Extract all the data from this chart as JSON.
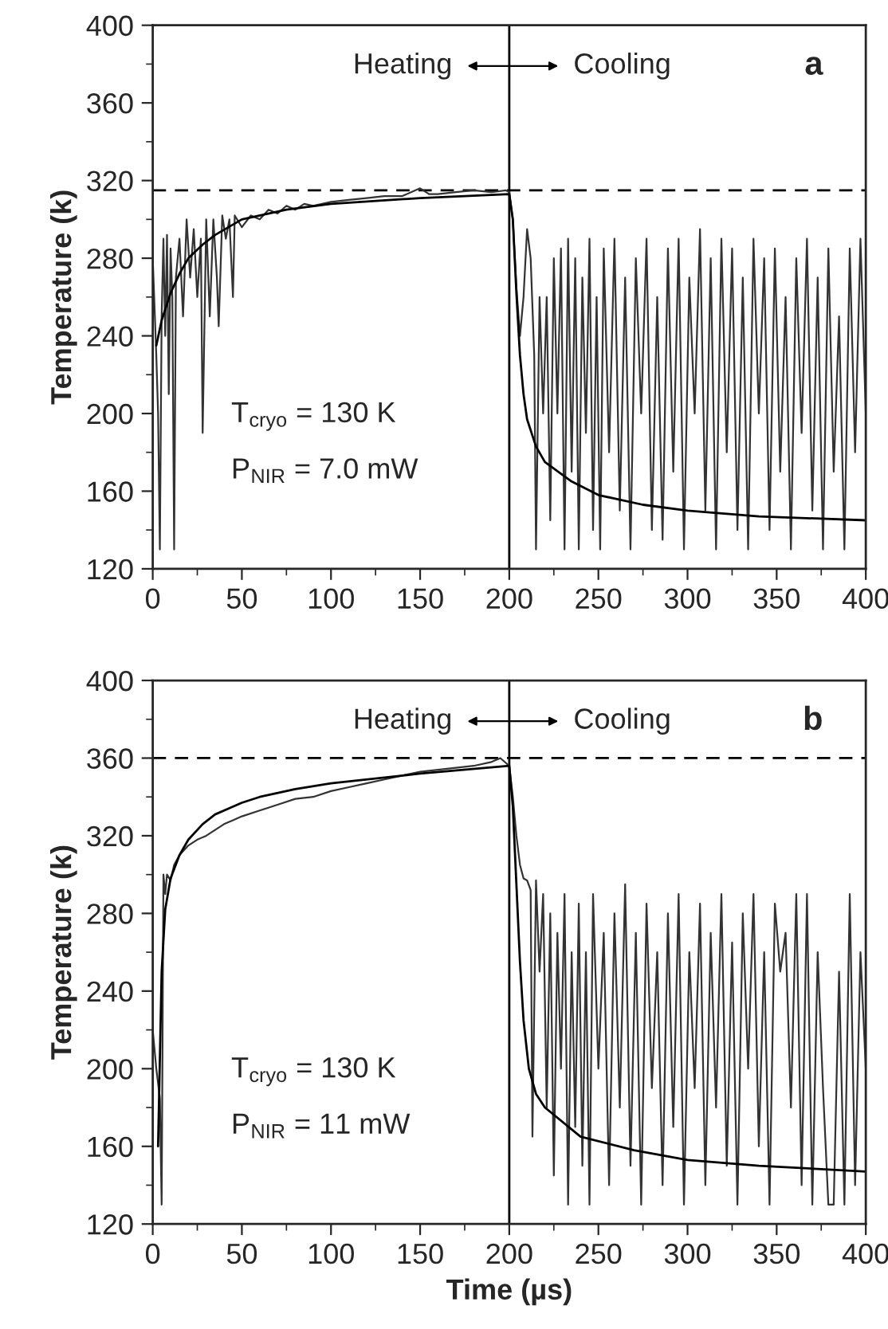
{
  "chart_data": [
    {
      "type": "line",
      "ylabel": "Temperature (k)",
      "xlim": [
        0,
        400
      ],
      "ylim": [
        120,
        400
      ],
      "xticks": [
        0,
        50,
        100,
        150,
        200,
        250,
        300,
        350,
        400
      ],
      "yticks": [
        120,
        160,
        200,
        240,
        280,
        320,
        360,
        400
      ],
      "grid": false,
      "legend": false,
      "annotations": [
        "Heating",
        "Cooling",
        "a",
        "T$_{cryo}$ = 130 K",
        "P$_{NIR}$ = 7.0 mW"
      ],
      "ref_lines": [
        {
          "axis": "y",
          "value": 315,
          "line_style": "dashed",
          "color": "#000000"
        },
        {
          "axis": "x",
          "value": 200,
          "line_style": "solid",
          "color": "#000000"
        }
      ],
      "series": [
        {
          "color": "#333333",
          "x": [
            0,
            2,
            3,
            4,
            5,
            6,
            7,
            8,
            9,
            10,
            11,
            12,
            13,
            15,
            17,
            19,
            21,
            23,
            25,
            27,
            28,
            30,
            32,
            34,
            36,
            37,
            39,
            41,
            43,
            45,
            46,
            50,
            55,
            60,
            65,
            70,
            75,
            80,
            85,
            90,
            100,
            110,
            120,
            130,
            140,
            150,
            155,
            160,
            170,
            180,
            190,
            198,
            200,
            202,
            204,
            206,
            208,
            210,
            212,
            214,
            215,
            217,
            219,
            221,
            223,
            225,
            227,
            229,
            231,
            233,
            235,
            237,
            239,
            241,
            243,
            245,
            247,
            249,
            251,
            253,
            256,
            259,
            262,
            265,
            268,
            271,
            274,
            277,
            280,
            283,
            286,
            289,
            292,
            295,
            298,
            301,
            304,
            307,
            310,
            313,
            316,
            319,
            322,
            325,
            328,
            331,
            334,
            337,
            340,
            343,
            346,
            349,
            352,
            355,
            358,
            361,
            364,
            367,
            370,
            373,
            376,
            379,
            382,
            385,
            388,
            391,
            394,
            397,
            400
          ],
          "values": [
            280,
            230,
            200,
            130,
            250,
            290,
            240,
            292,
            210,
            285,
            260,
            130,
            270,
            290,
            250,
            300,
            270,
            295,
            260,
            290,
            190,
            300,
            250,
            300,
            270,
            245,
            302,
            290,
            300,
            260,
            302,
            296,
            302,
            300,
            305,
            303,
            307,
            305,
            308,
            307,
            309,
            310,
            311,
            312,
            312,
            316,
            313,
            313,
            314,
            315,
            314,
            315,
            314,
            300,
            265,
            240,
            260,
            295,
            280,
            230,
            130,
            260,
            200,
            260,
            145,
            280,
            200,
            285,
            130,
            290,
            170,
            280,
            130,
            270,
            190,
            290,
            140,
            260,
            130,
            285,
            180,
            290,
            150,
            270,
            130,
            280,
            200,
            290,
            140,
            260,
            135,
            285,
            170,
            290,
            130,
            270,
            200,
            295,
            150,
            280,
            130,
            290,
            180,
            285,
            140,
            270,
            130,
            290,
            200,
            280,
            140,
            285,
            170,
            260,
            130,
            280,
            190,
            290,
            150,
            270,
            130,
            285,
            170,
            250,
            130,
            285,
            180,
            290,
            200
          ]
        },
        {
          "color": "#000000",
          "x": [
            2,
            5,
            10,
            15,
            20,
            28,
            35,
            50,
            75,
            100,
            150,
            200,
            202,
            204,
            206,
            208,
            210,
            215,
            220,
            235,
            250,
            275,
            300,
            340,
            400
          ],
          "values": [
            235,
            248,
            262,
            272,
            280,
            287,
            292,
            300,
            305,
            308,
            311,
            313,
            300,
            262,
            230,
            210,
            197,
            183,
            175,
            165,
            158,
            153,
            150,
            147,
            145
          ]
        }
      ]
    },
    {
      "type": "line",
      "ylabel": "Temperature (k)",
      "xlabel": "Time (µs)",
      "xlim": [
        0,
        400
      ],
      "ylim": [
        120,
        400
      ],
      "xticks": [
        0,
        50,
        100,
        150,
        200,
        250,
        300,
        350,
        400
      ],
      "yticks": [
        120,
        160,
        200,
        240,
        280,
        320,
        360,
        400
      ],
      "grid": false,
      "legend": false,
      "annotations": [
        "Heating",
        "Cooling",
        "b",
        "T$_{cryo}$ = 130 K",
        "P$_{NIR}$ = 11 mW"
      ],
      "ref_lines": [
        {
          "axis": "y",
          "value": 360,
          "line_style": "dashed",
          "color": "#000000"
        },
        {
          "axis": "x",
          "value": 200,
          "line_style": "solid",
          "color": "#000000"
        }
      ],
      "series": [
        {
          "color": "#333333",
          "x": [
            0,
            2,
            4,
            5,
            6,
            7,
            8,
            10,
            12,
            15,
            20,
            25,
            30,
            35,
            40,
            45,
            50,
            60,
            70,
            80,
            90,
            100,
            110,
            120,
            130,
            140,
            150,
            160,
            170,
            180,
            190,
            195,
            200,
            202,
            204,
            206,
            208,
            210,
            212,
            213,
            215,
            217,
            219,
            221,
            223,
            225,
            227,
            229,
            231,
            233,
            235,
            237,
            239,
            241,
            243,
            245,
            247,
            250,
            253,
            256,
            259,
            262,
            265,
            268,
            271,
            274,
            277,
            280,
            283,
            286,
            289,
            292,
            295,
            298,
            301,
            304,
            307,
            310,
            313,
            316,
            319,
            322,
            325,
            328,
            331,
            334,
            337,
            340,
            343,
            346,
            349,
            352,
            355,
            358,
            361,
            364,
            367,
            370,
            373,
            376,
            379,
            382,
            385,
            388,
            391,
            394,
            397,
            400
          ],
          "values": [
            220,
            200,
            185,
            130,
            300,
            290,
            300,
            297,
            305,
            310,
            315,
            318,
            320,
            323,
            326,
            328,
            330,
            333,
            336,
            339,
            340,
            343,
            345,
            347,
            349,
            351,
            353,
            354,
            355,
            356,
            358,
            360,
            356,
            340,
            320,
            305,
            298,
            297,
            292,
            165,
            297,
            250,
            290,
            180,
            280,
            145,
            270,
            200,
            290,
            130,
            260,
            170,
            285,
            150,
            260,
            130,
            290,
            200,
            270,
            140,
            280,
            180,
            295,
            150,
            270,
            130,
            285,
            190,
            260,
            140,
            280,
            170,
            290,
            130,
            260,
            190,
            285,
            140,
            270,
            180,
            290,
            150,
            265,
            130,
            280,
            200,
            290,
            160,
            260,
            130,
            285,
            250,
            270,
            180,
            290,
            140,
            290,
            130,
            260,
            190,
            130,
            130,
            250,
            130,
            290,
            140,
            260,
            200
          ]
        },
        {
          "color": "#000000",
          "x": [
            3,
            5,
            7,
            10,
            15,
            20,
            28,
            35,
            50,
            60,
            80,
            100,
            150,
            200,
            202,
            204,
            206,
            208,
            211,
            215,
            220,
            240,
            270,
            300,
            340,
            400
          ],
          "values": [
            160,
            250,
            282,
            298,
            310,
            318,
            326,
            331,
            337,
            340,
            344,
            347,
            352,
            356,
            335,
            295,
            255,
            225,
            200,
            187,
            180,
            165,
            158,
            153,
            150,
            147
          ]
        }
      ]
    }
  ]
}
